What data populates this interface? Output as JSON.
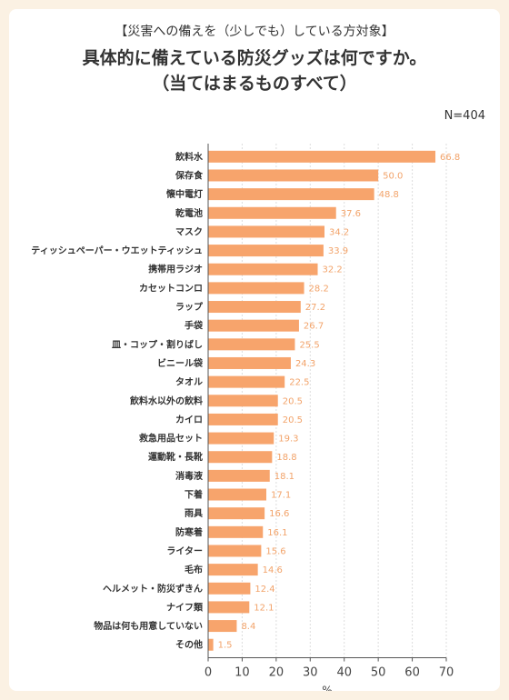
{
  "header": {
    "subtitle": "【災害への備えを（少しでも）している方対象】",
    "title_line1": "具体的に備えている防災グッズは何ですか。",
    "title_line2": "（当てはまるものすべて）",
    "n_label": "N=404"
  },
  "colors": {
    "bar": "#f7a46c",
    "value_label": "#f2a36a",
    "background": "#fbf1e3",
    "card": "#ffffff"
  },
  "chart_data": {
    "type": "bar",
    "orientation": "horizontal",
    "categories": [
      "飲料水",
      "保存食",
      "懐中電灯",
      "乾電池",
      "マスク",
      "ティッシュペーパー・ウエットティッシュ",
      "携帯用ラジオ",
      "カセットコンロ",
      "ラップ",
      "手袋",
      "皿・コップ・割りばし",
      "ビニール袋",
      "タオル",
      "飲料水以外の飲料",
      "カイロ",
      "救急用品セット",
      "運動靴・長靴",
      "消毒液",
      "下着",
      "雨具",
      "防寒着",
      "ライター",
      "毛布",
      "ヘルメット・防災ずきん",
      "ナイフ類",
      "物品は何も用意していない",
      "その他"
    ],
    "values": [
      66.8,
      50.0,
      48.8,
      37.6,
      34.2,
      33.9,
      32.2,
      28.2,
      27.2,
      26.7,
      25.5,
      24.3,
      22.5,
      20.5,
      20.5,
      19.3,
      18.8,
      18.1,
      17.1,
      16.6,
      16.1,
      15.6,
      14.6,
      12.4,
      12.1,
      8.4,
      1.5
    ],
    "value_labels": [
      "66.8",
      "50.0",
      "48.8",
      "37.6",
      "34.2",
      "33.9",
      "32.2",
      "28.2",
      "27.2",
      "26.7",
      "25.5",
      "24.3",
      "22.5",
      "20.5",
      "20.5",
      "19.3",
      "18.8",
      "18.1",
      "17.1",
      "16.6",
      "16.1",
      "15.6",
      "14.6",
      "12.4",
      "12.1",
      "8.4",
      "1.5"
    ],
    "xlim": [
      0,
      70
    ],
    "xticks": [
      0,
      10,
      20,
      30,
      40,
      50,
      60,
      70
    ],
    "xlabel": "%",
    "grid": true
  }
}
